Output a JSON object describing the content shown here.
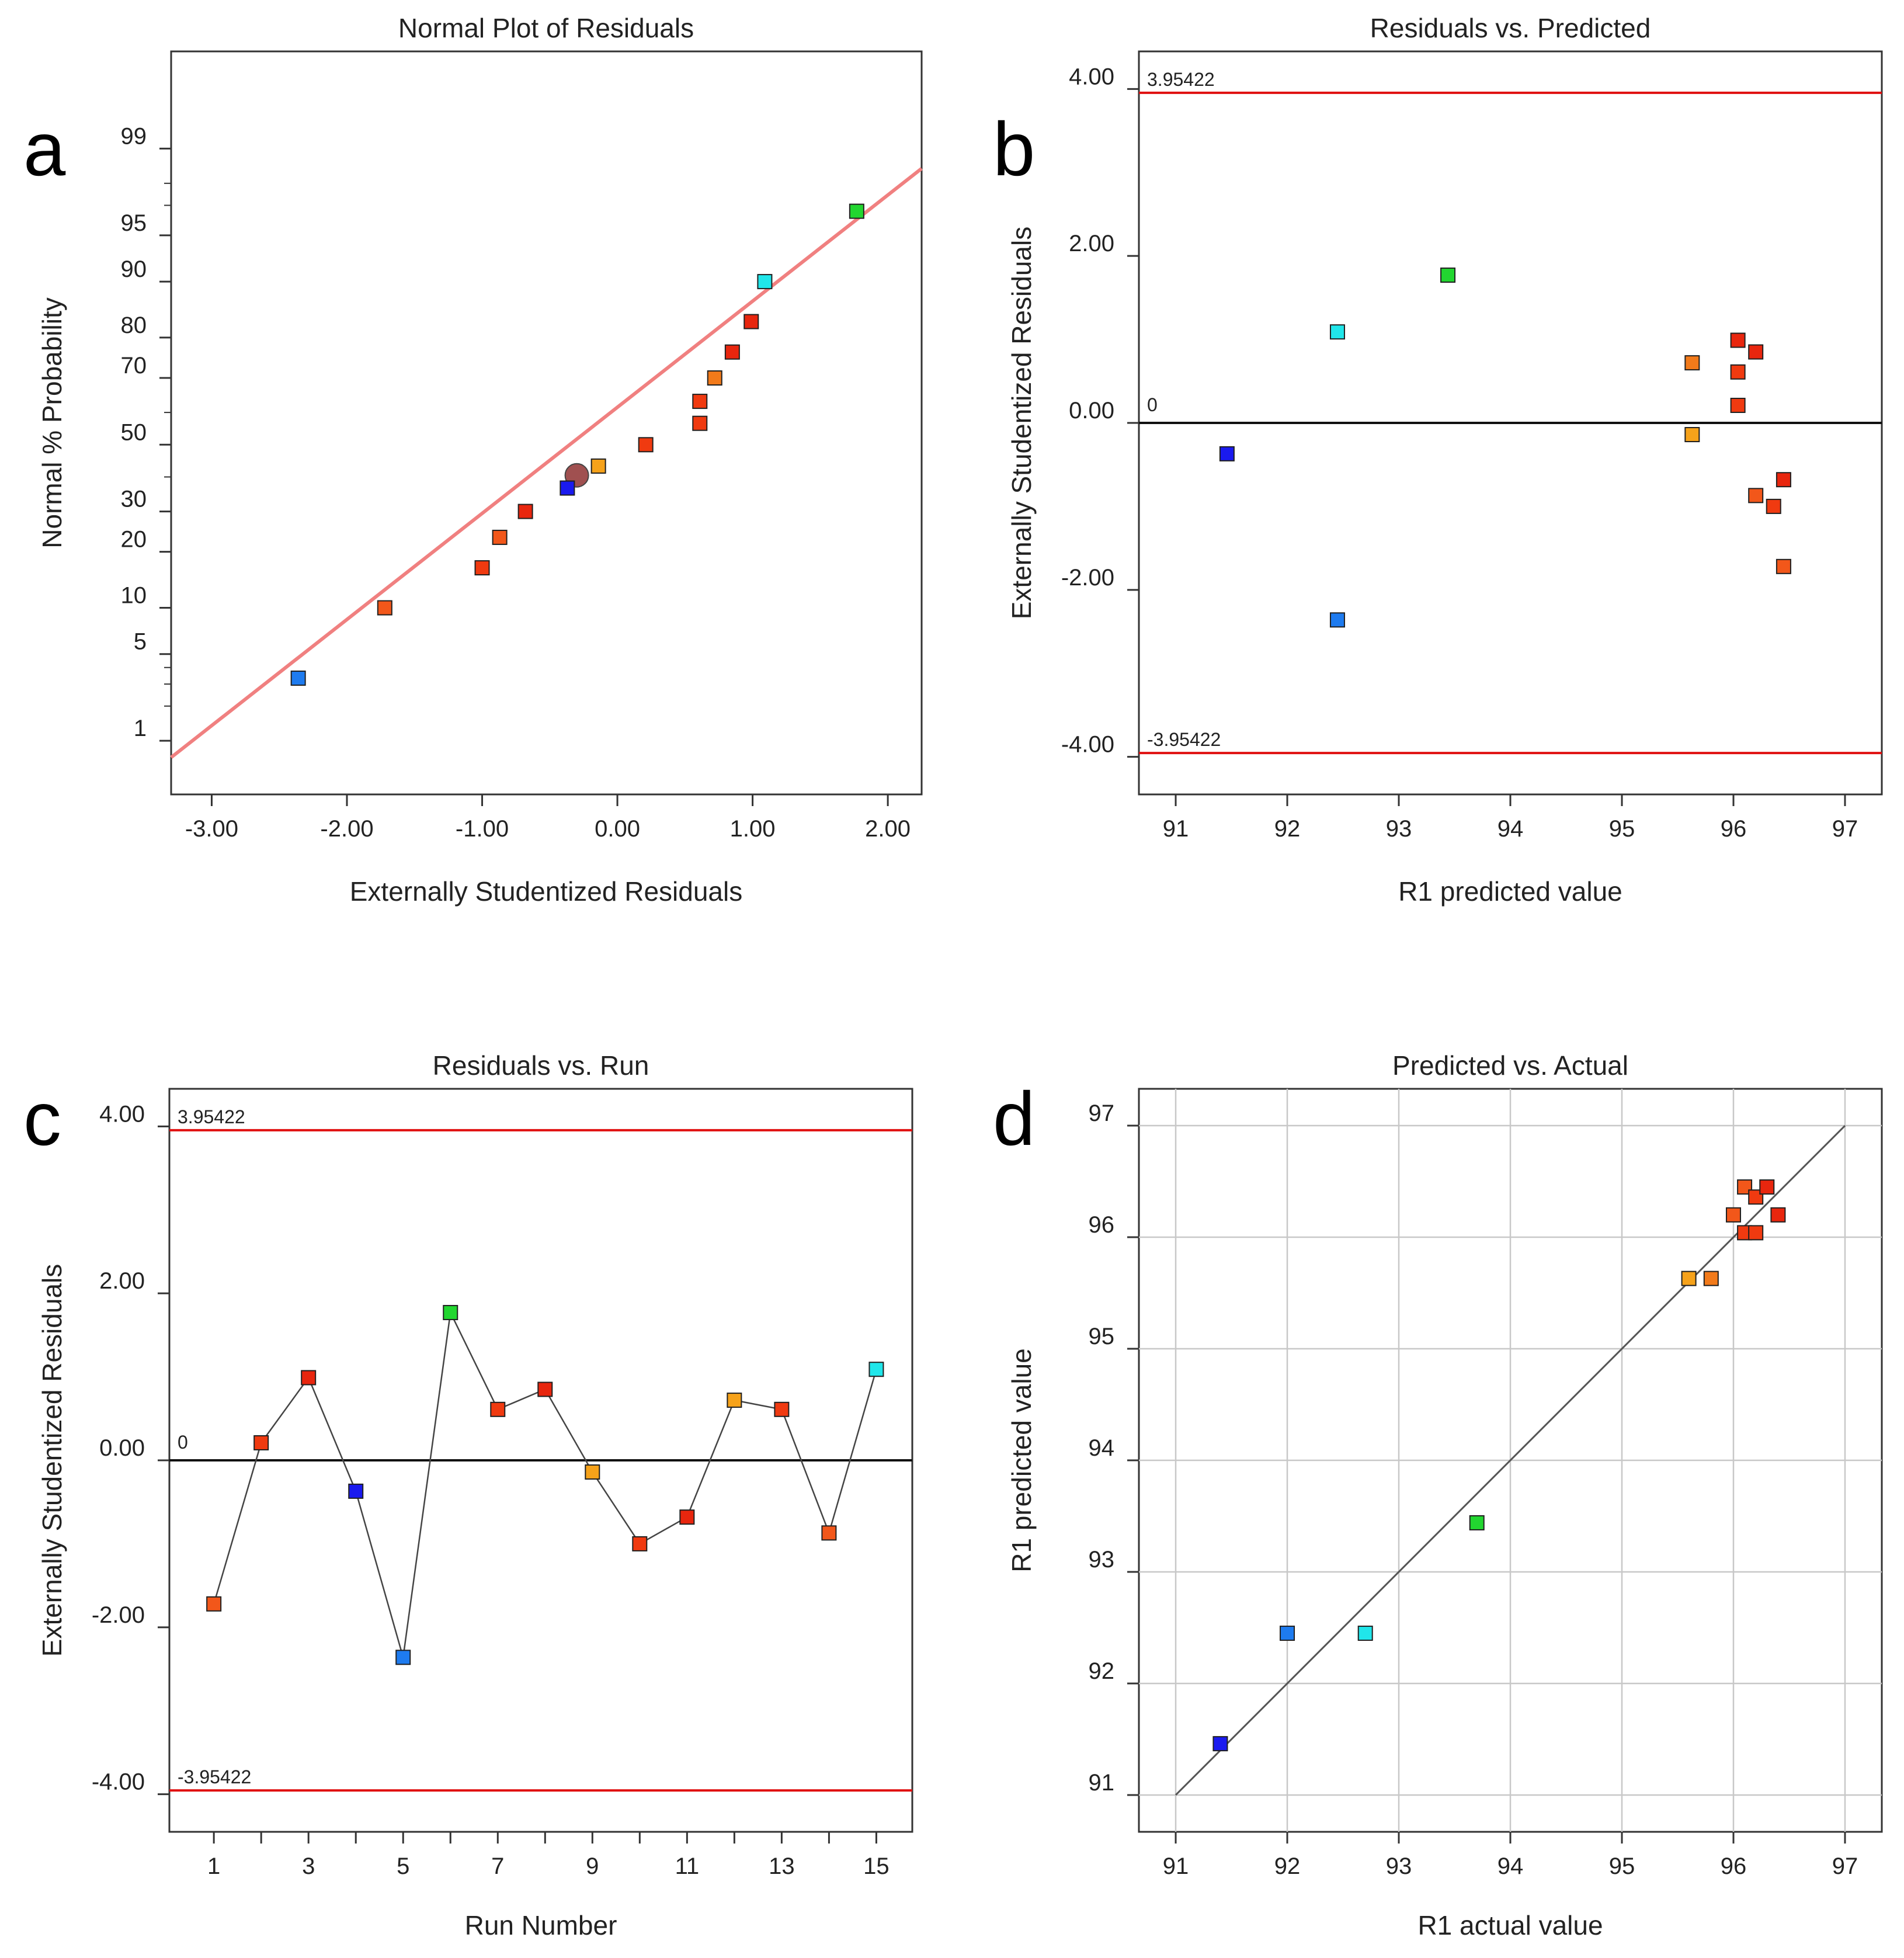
{
  "chart_data": [
    {
      "panel": "a",
      "type": "scatter",
      "title": "Normal Plot of Residuals",
      "xlabel": "Externally Studentized Residuals",
      "ylabel": "Normal % Probability",
      "xlim": [
        -3.3,
        2.25
      ],
      "xticks": [
        -3,
        -2,
        -1,
        0,
        1,
        2
      ],
      "xtick_labels": [
        "-3.00",
        "-2.00",
        "-1.00",
        "0.00",
        "1.00",
        "2.00"
      ],
      "yticks": [
        1,
        5,
        10,
        20,
        30,
        50,
        70,
        80,
        90,
        95,
        99
      ],
      "ytick_labels": [
        "1",
        "5",
        "10",
        "20",
        "30",
        "50",
        "70",
        "80",
        "90",
        "95",
        "99"
      ],
      "minor_yticks": [
        2,
        3,
        4,
        40,
        60,
        97,
        98
      ],
      "ylim_probability": [
        0.3,
        99.9
      ],
      "fit_line": {
        "x": [
          -3.3,
          2.25
        ],
        "y_pct": [
          0.7,
          98.5
        ],
        "color": "#f08080"
      },
      "points": [
        {
          "x": -2.36,
          "p": 3.33,
          "color": "#1e7bef"
        },
        {
          "x": -1.72,
          "p": 10.0,
          "color": "#f2571a"
        },
        {
          "x": -1.0,
          "p": 16.67,
          "color": "#f03a10"
        },
        {
          "x": -0.87,
          "p": 23.33,
          "color": "#f2571a"
        },
        {
          "x": -0.68,
          "p": 30.0,
          "color": "#e8260e"
        },
        {
          "x": -0.37,
          "p": 36.67,
          "color": "#1a1aef"
        },
        {
          "x": -0.14,
          "p": 43.33,
          "color": "#f6a21a"
        },
        {
          "x": 0.21,
          "p": 50.0,
          "color": "#f03a10"
        },
        {
          "x": 0.61,
          "p": 56.67,
          "color": "#f03a10"
        },
        {
          "x": 0.61,
          "p": 63.33,
          "color": "#f03a10"
        },
        {
          "x": 0.72,
          "p": 70.0,
          "color": "#f27a1a"
        },
        {
          "x": 0.85,
          "p": 76.67,
          "color": "#e8260e"
        },
        {
          "x": 0.99,
          "p": 83.33,
          "color": "#e8260e"
        },
        {
          "x": 1.09,
          "p": 90.0,
          "color": "#20e6ea"
        },
        {
          "x": 1.77,
          "p": 96.67,
          "color": "#22d630"
        }
      ],
      "mean_marker": {
        "x": -0.3,
        "p": 40.5,
        "color": "#a05050"
      }
    },
    {
      "panel": "b",
      "type": "scatter",
      "title": "Residuals vs. Predicted",
      "xlabel": "R1 predicted value",
      "ylabel": "Externally Studentized Residuals",
      "xlim": [
        90.67,
        97.33
      ],
      "ylim": [
        -4.45,
        4.45
      ],
      "xticks": [
        91,
        92,
        93,
        94,
        95,
        96,
        97
      ],
      "xtick_labels": [
        "91",
        "92",
        "93",
        "94",
        "95",
        "96",
        "97"
      ],
      "yticks": [
        -4,
        -2,
        0,
        2,
        4
      ],
      "ytick_labels": [
        "-4.00",
        "-2.00",
        "0.00",
        "2.00",
        "4.00"
      ],
      "limits": {
        "upper": 3.95422,
        "lower": -3.95422,
        "upper_label": "3.95422",
        "lower_label": "-3.95422",
        "zero_label": "0"
      },
      "points": [
        {
          "x": 91.46,
          "y": -0.37,
          "color": "#1a1aef"
        },
        {
          "x": 92.45,
          "y": 1.09,
          "color": "#20e6ea"
        },
        {
          "x": 92.45,
          "y": -2.36,
          "color": "#1e7bef"
        },
        {
          "x": 93.44,
          "y": 1.77,
          "color": "#22d630"
        },
        {
          "x": 95.63,
          "y": 0.72,
          "color": "#f27a1a"
        },
        {
          "x": 95.63,
          "y": -0.14,
          "color": "#f6a21a"
        },
        {
          "x": 96.04,
          "y": 0.99,
          "color": "#e8260e"
        },
        {
          "x": 96.04,
          "y": 0.61,
          "color": "#f03a10"
        },
        {
          "x": 96.04,
          "y": 0.21,
          "color": "#f03a10"
        },
        {
          "x": 96.2,
          "y": 0.85,
          "color": "#e8260e"
        },
        {
          "x": 96.2,
          "y": -0.87,
          "color": "#f2571a"
        },
        {
          "x": 96.36,
          "y": -1.0,
          "color": "#f03a10"
        },
        {
          "x": 96.45,
          "y": -0.68,
          "color": "#e8260e"
        },
        {
          "x": 96.45,
          "y": -1.72,
          "color": "#f2571a"
        }
      ]
    },
    {
      "panel": "c",
      "type": "line",
      "title": "Residuals vs. Run",
      "xlabel": "Run Number",
      "ylabel": "Externally Studentized Residuals",
      "xlim": [
        0.06,
        15.76
      ],
      "ylim": [
        -4.45,
        4.45
      ],
      "xticks": [
        1,
        2,
        3,
        4,
        5,
        6,
        7,
        8,
        9,
        10,
        11,
        12,
        13,
        14,
        15
      ],
      "xtick_labels": [
        "1",
        "",
        "3",
        "",
        "5",
        "",
        "7",
        "",
        "9",
        "",
        "11",
        "",
        "13",
        "",
        "15"
      ],
      "yticks": [
        -4,
        -2,
        0,
        2,
        4
      ],
      "ytick_labels": [
        "-4.00",
        "-2.00",
        "0.00",
        "2.00",
        "4.00"
      ],
      "limits": {
        "upper": 3.95422,
        "lower": -3.95422,
        "upper_label": "3.95422",
        "lower_label": "-3.95422",
        "zero_label": "0"
      },
      "points": [
        {
          "x": 1,
          "y": -1.72,
          "color": "#f2571a"
        },
        {
          "x": 2,
          "y": 0.21,
          "color": "#f03a10"
        },
        {
          "x": 3,
          "y": 0.99,
          "color": "#e8260e"
        },
        {
          "x": 4,
          "y": -0.37,
          "color": "#1a1aef"
        },
        {
          "x": 5,
          "y": -2.36,
          "color": "#1e7bef"
        },
        {
          "x": 6,
          "y": 1.77,
          "color": "#22d630"
        },
        {
          "x": 7,
          "y": 0.61,
          "color": "#f03a10"
        },
        {
          "x": 8,
          "y": 0.85,
          "color": "#e8260e"
        },
        {
          "x": 9,
          "y": -0.14,
          "color": "#f6a21a"
        },
        {
          "x": 10,
          "y": -1.0,
          "color": "#f03a10"
        },
        {
          "x": 11,
          "y": -0.68,
          "color": "#e8260e"
        },
        {
          "x": 12,
          "y": 0.72,
          "color": "#f6a21a"
        },
        {
          "x": 13,
          "y": 0.61,
          "color": "#f03a10"
        },
        {
          "x": 14,
          "y": -0.87,
          "color": "#f2571a"
        },
        {
          "x": 15,
          "y": 1.09,
          "color": "#20e6ea"
        }
      ]
    },
    {
      "panel": "d",
      "type": "scatter",
      "title": "Predicted vs. Actual",
      "xlabel": "R1 actual value",
      "ylabel": "R1 predicted value",
      "xlim": [
        90.67,
        97.33
      ],
      "ylim": [
        90.67,
        97.33
      ],
      "grid": true,
      "xticks": [
        91,
        92,
        93,
        94,
        95,
        96,
        97
      ],
      "xtick_labels": [
        "91",
        "92",
        "93",
        "94",
        "95",
        "96",
        "97"
      ],
      "yticks": [
        91,
        92,
        93,
        94,
        95,
        96,
        97
      ],
      "ytick_labels": [
        "91",
        "92",
        "93",
        "94",
        "95",
        "96",
        "97"
      ],
      "diagonal": [
        91,
        97
      ],
      "points": [
        {
          "x": 91.4,
          "y": 91.46,
          "color": "#1a1aef"
        },
        {
          "x": 92.0,
          "y": 92.45,
          "color": "#1e7bef"
        },
        {
          "x": 92.7,
          "y": 92.45,
          "color": "#20e6ea"
        },
        {
          "x": 93.7,
          "y": 93.44,
          "color": "#22d630"
        },
        {
          "x": 95.6,
          "y": 95.63,
          "color": "#f6a21a"
        },
        {
          "x": 95.8,
          "y": 95.63,
          "color": "#f27a1a"
        },
        {
          "x": 96.0,
          "y": 96.2,
          "color": "#f2571a"
        },
        {
          "x": 96.1,
          "y": 96.45,
          "color": "#f2571a"
        },
        {
          "x": 96.1,
          "y": 96.04,
          "color": "#f03a10"
        },
        {
          "x": 96.2,
          "y": 96.36,
          "color": "#f03a10"
        },
        {
          "x": 96.2,
          "y": 96.04,
          "color": "#f03a10"
        },
        {
          "x": 96.3,
          "y": 96.45,
          "color": "#e8260e"
        },
        {
          "x": 96.4,
          "y": 96.2,
          "color": "#e8260e"
        }
      ]
    }
  ],
  "panel_letters": [
    "a",
    "b",
    "c",
    "d"
  ],
  "colors": {
    "limit_line": "#e01010",
    "zero_line": "#111111",
    "run_line": "#444444",
    "grid": "#c8c8c8",
    "diagonal": "#555555",
    "marker_edge": "#202020"
  }
}
